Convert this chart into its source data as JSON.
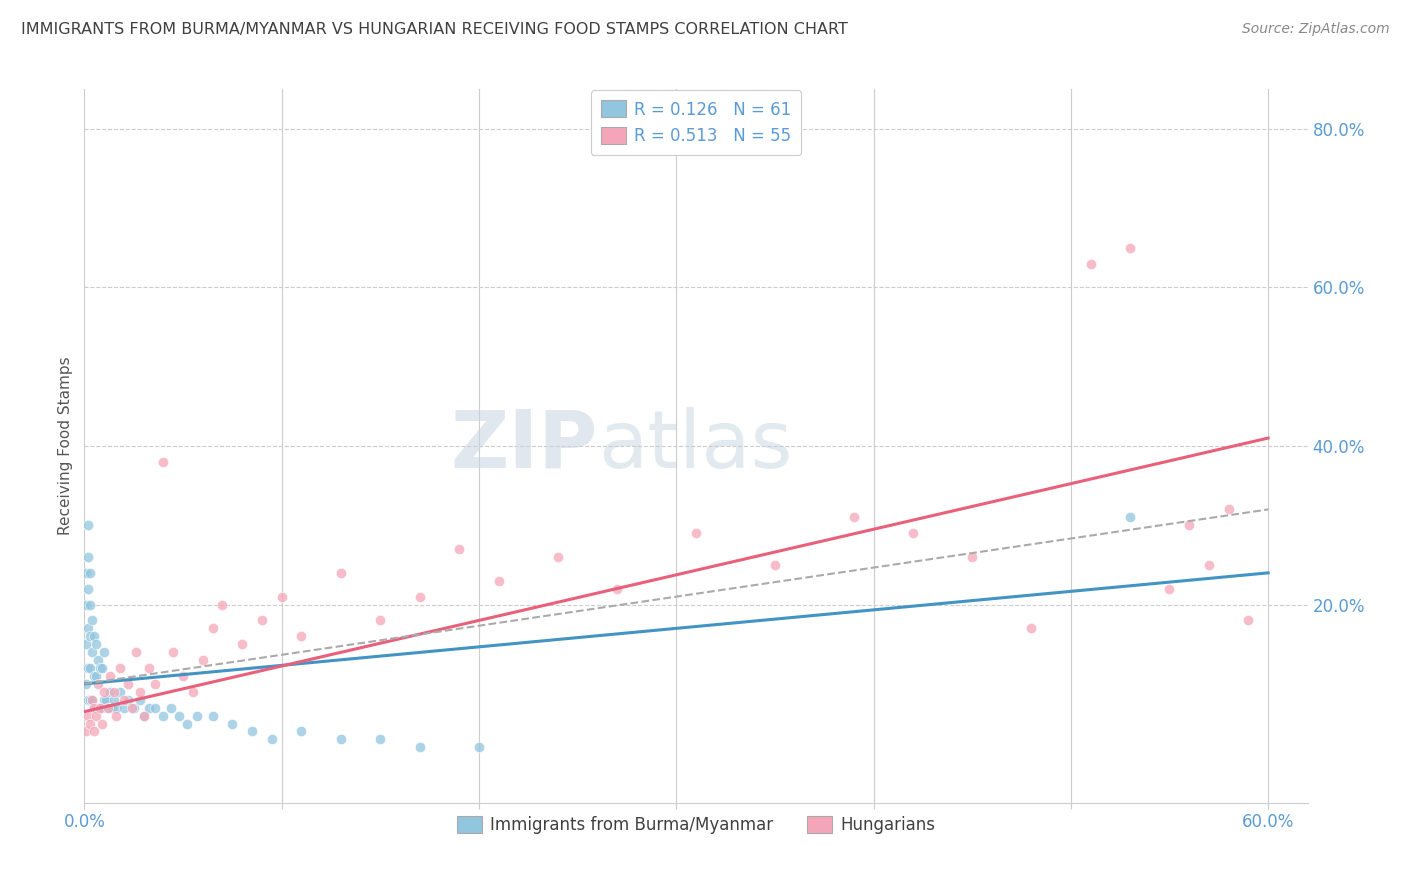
{
  "title": "IMMIGRANTS FROM BURMA/MYANMAR VS HUNGARIAN RECEIVING FOOD STAMPS CORRELATION CHART",
  "source": "Source: ZipAtlas.com",
  "ylabel": "Receiving Food Stamps",
  "xlim": [
    0.0,
    0.62
  ],
  "ylim": [
    -0.05,
    0.85
  ],
  "x_ticks": [
    0.0,
    0.1,
    0.2,
    0.3,
    0.4,
    0.5,
    0.6
  ],
  "x_tick_labels": [
    "0.0%",
    "",
    "",
    "",
    "",
    "",
    "60.0%"
  ],
  "y_tick_labels_right": [
    "80.0%",
    "60.0%",
    "40.0%",
    "20.0%"
  ],
  "y_ticks_right": [
    0.8,
    0.6,
    0.4,
    0.2
  ],
  "blue_color": "#92c5de",
  "pink_color": "#f4a6b8",
  "blue_line_color": "#4393c3",
  "pink_line_color": "#e8607a",
  "dashed_line_color": "#aaaaaa",
  "legend_R_blue": "R = 0.126",
  "legend_N_blue": "N = 61",
  "legend_R_pink": "R = 0.513",
  "legend_N_pink": "N = 55",
  "blue_scatter_x": [
    0.001,
    0.001,
    0.001,
    0.001,
    0.002,
    0.002,
    0.002,
    0.002,
    0.002,
    0.002,
    0.003,
    0.003,
    0.003,
    0.003,
    0.003,
    0.004,
    0.004,
    0.004,
    0.005,
    0.005,
    0.005,
    0.006,
    0.006,
    0.006,
    0.007,
    0.007,
    0.008,
    0.008,
    0.009,
    0.009,
    0.01,
    0.01,
    0.011,
    0.012,
    0.013,
    0.014,
    0.015,
    0.016,
    0.018,
    0.02,
    0.022,
    0.025,
    0.028,
    0.03,
    0.033,
    0.036,
    0.04,
    0.044,
    0.048,
    0.052,
    0.057,
    0.065,
    0.075,
    0.085,
    0.095,
    0.11,
    0.13,
    0.15,
    0.17,
    0.2,
    0.53
  ],
  "blue_scatter_y": [
    0.1,
    0.15,
    0.2,
    0.24,
    0.08,
    0.12,
    0.17,
    0.22,
    0.26,
    0.3,
    0.08,
    0.12,
    0.16,
    0.2,
    0.24,
    0.08,
    0.14,
    0.18,
    0.07,
    0.11,
    0.16,
    0.07,
    0.11,
    0.15,
    0.07,
    0.13,
    0.07,
    0.12,
    0.07,
    0.12,
    0.08,
    0.14,
    0.08,
    0.07,
    0.09,
    0.07,
    0.08,
    0.07,
    0.09,
    0.07,
    0.08,
    0.07,
    0.08,
    0.06,
    0.07,
    0.07,
    0.06,
    0.07,
    0.06,
    0.05,
    0.06,
    0.06,
    0.05,
    0.04,
    0.03,
    0.04,
    0.03,
    0.03,
    0.02,
    0.02,
    0.31
  ],
  "pink_scatter_x": [
    0.001,
    0.002,
    0.003,
    0.004,
    0.005,
    0.005,
    0.006,
    0.007,
    0.008,
    0.009,
    0.01,
    0.012,
    0.013,
    0.015,
    0.016,
    0.018,
    0.02,
    0.022,
    0.024,
    0.026,
    0.028,
    0.03,
    0.033,
    0.036,
    0.04,
    0.045,
    0.05,
    0.055,
    0.06,
    0.065,
    0.07,
    0.08,
    0.09,
    0.1,
    0.11,
    0.13,
    0.15,
    0.17,
    0.19,
    0.21,
    0.24,
    0.27,
    0.31,
    0.35,
    0.39,
    0.42,
    0.45,
    0.48,
    0.51,
    0.53,
    0.55,
    0.56,
    0.57,
    0.58,
    0.59
  ],
  "pink_scatter_y": [
    0.04,
    0.06,
    0.05,
    0.08,
    0.04,
    0.07,
    0.06,
    0.1,
    0.07,
    0.05,
    0.09,
    0.07,
    0.11,
    0.09,
    0.06,
    0.12,
    0.08,
    0.1,
    0.07,
    0.14,
    0.09,
    0.06,
    0.12,
    0.1,
    0.38,
    0.14,
    0.11,
    0.09,
    0.13,
    0.17,
    0.2,
    0.15,
    0.18,
    0.21,
    0.16,
    0.24,
    0.18,
    0.21,
    0.27,
    0.23,
    0.26,
    0.22,
    0.29,
    0.25,
    0.31,
    0.29,
    0.26,
    0.17,
    0.63,
    0.65,
    0.22,
    0.3,
    0.25,
    0.32,
    0.18
  ],
  "blue_trend_x": [
    0.0,
    0.6
  ],
  "blue_trend_y": [
    0.1,
    0.24
  ],
  "pink_trend_x": [
    0.0,
    0.6
  ],
  "pink_trend_y": [
    0.065,
    0.41
  ],
  "dashed_trend_x": [
    0.0,
    0.6
  ],
  "dashed_trend_y": [
    0.1,
    0.32
  ],
  "background_color": "#ffffff",
  "grid_color": "#cccccc",
  "title_color": "#404040",
  "axis_color": "#5b9bd5"
}
